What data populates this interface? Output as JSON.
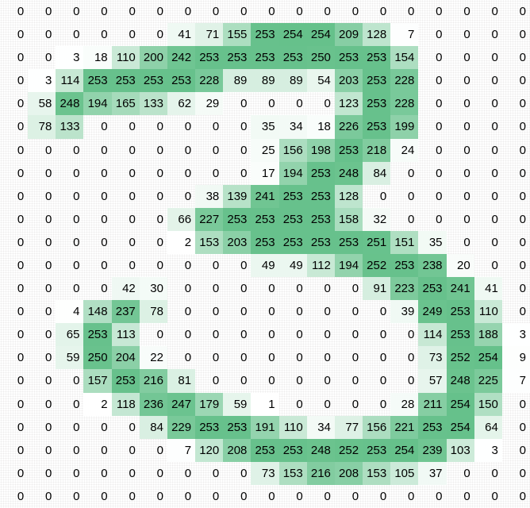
{
  "chart_data": {
    "type": "heatmap",
    "title": "",
    "xlabel": "",
    "ylabel": "",
    "rows": 22,
    "cols": 19,
    "value_range": [
      0,
      254
    ],
    "grid": "off",
    "legend": "none",
    "cell_text_color": "#000000",
    "colormap": {
      "min_color": "#ffffff",
      "max_color": "#66c18b",
      "gamma": 1.25
    },
    "values": [
      [
        0,
        0,
        0,
        0,
        0,
        0,
        0,
        0,
        0,
        0,
        0,
        0,
        0,
        0,
        0,
        0,
        0,
        0,
        0
      ],
      [
        0,
        0,
        0,
        0,
        0,
        0,
        41,
        71,
        155,
        253,
        254,
        254,
        209,
        128,
        7,
        0,
        0,
        0,
        0
      ],
      [
        0,
        0,
        3,
        18,
        110,
        200,
        242,
        253,
        253,
        253,
        253,
        250,
        253,
        253,
        154,
        0,
        0,
        0,
        0
      ],
      [
        0,
        3,
        114,
        253,
        253,
        253,
        253,
        228,
        89,
        89,
        89,
        54,
        203,
        253,
        228,
        0,
        0,
        0,
        0
      ],
      [
        0,
        58,
        248,
        194,
        165,
        133,
        62,
        29,
        0,
        0,
        0,
        0,
        123,
        253,
        228,
        0,
        0,
        0,
        0
      ],
      [
        0,
        78,
        133,
        0,
        0,
        0,
        0,
        0,
        0,
        35,
        34,
        18,
        226,
        253,
        199,
        0,
        0,
        0,
        0
      ],
      [
        0,
        0,
        0,
        0,
        0,
        0,
        0,
        0,
        0,
        25,
        156,
        198,
        253,
        218,
        24,
        0,
        0,
        0,
        0
      ],
      [
        0,
        0,
        0,
        0,
        0,
        0,
        0,
        0,
        0,
        17,
        194,
        253,
        248,
        84,
        0,
        0,
        0,
        0,
        0
      ],
      [
        0,
        0,
        0,
        0,
        0,
        0,
        0,
        38,
        139,
        241,
        253,
        253,
        128,
        0,
        0,
        0,
        0,
        0,
        0
      ],
      [
        0,
        0,
        0,
        0,
        0,
        0,
        66,
        227,
        253,
        253,
        253,
        253,
        158,
        32,
        0,
        0,
        0,
        0,
        0
      ],
      [
        0,
        0,
        0,
        0,
        0,
        0,
        2,
        153,
        203,
        253,
        253,
        253,
        253,
        251,
        151,
        35,
        0,
        0,
        0
      ],
      [
        0,
        0,
        0,
        0,
        0,
        0,
        0,
        0,
        0,
        49,
        49,
        112,
        194,
        252,
        253,
        238,
        20,
        0,
        0
      ],
      [
        0,
        0,
        0,
        0,
        42,
        30,
        0,
        0,
        0,
        0,
        0,
        0,
        0,
        91,
        223,
        253,
        241,
        41,
        0
      ],
      [
        0,
        0,
        4,
        148,
        237,
        78,
        0,
        0,
        0,
        0,
        0,
        0,
        0,
        0,
        39,
        249,
        253,
        110,
        0
      ],
      [
        0,
        0,
        65,
        253,
        113,
        0,
        0,
        0,
        0,
        0,
        0,
        0,
        0,
        0,
        0,
        114,
        253,
        188,
        3
      ],
      [
        0,
        0,
        59,
        250,
        204,
        22,
        0,
        0,
        0,
        0,
        0,
        0,
        0,
        0,
        0,
        73,
        252,
        254,
        9
      ],
      [
        0,
        0,
        0,
        157,
        253,
        216,
        81,
        0,
        0,
        0,
        0,
        0,
        0,
        0,
        0,
        57,
        248,
        225,
        7
      ],
      [
        0,
        0,
        0,
        2,
        118,
        236,
        247,
        179,
        59,
        1,
        0,
        0,
        0,
        0,
        28,
        211,
        254,
        150,
        0
      ],
      [
        0,
        0,
        0,
        0,
        0,
        84,
        229,
        253,
        253,
        191,
        110,
        34,
        77,
        156,
        221,
        253,
        254,
        64,
        0
      ],
      [
        0,
        0,
        0,
        0,
        0,
        0,
        7,
        120,
        208,
        253,
        253,
        248,
        252,
        253,
        254,
        239,
        103,
        3,
        0
      ],
      [
        0,
        0,
        0,
        0,
        0,
        0,
        0,
        0,
        0,
        73,
        153,
        216,
        208,
        153,
        105,
        37,
        0,
        0,
        0
      ],
      [
        0,
        0,
        0,
        0,
        0,
        0,
        0,
        0,
        0,
        0,
        0,
        0,
        0,
        0,
        0,
        0,
        0,
        0,
        0
      ]
    ]
  }
}
